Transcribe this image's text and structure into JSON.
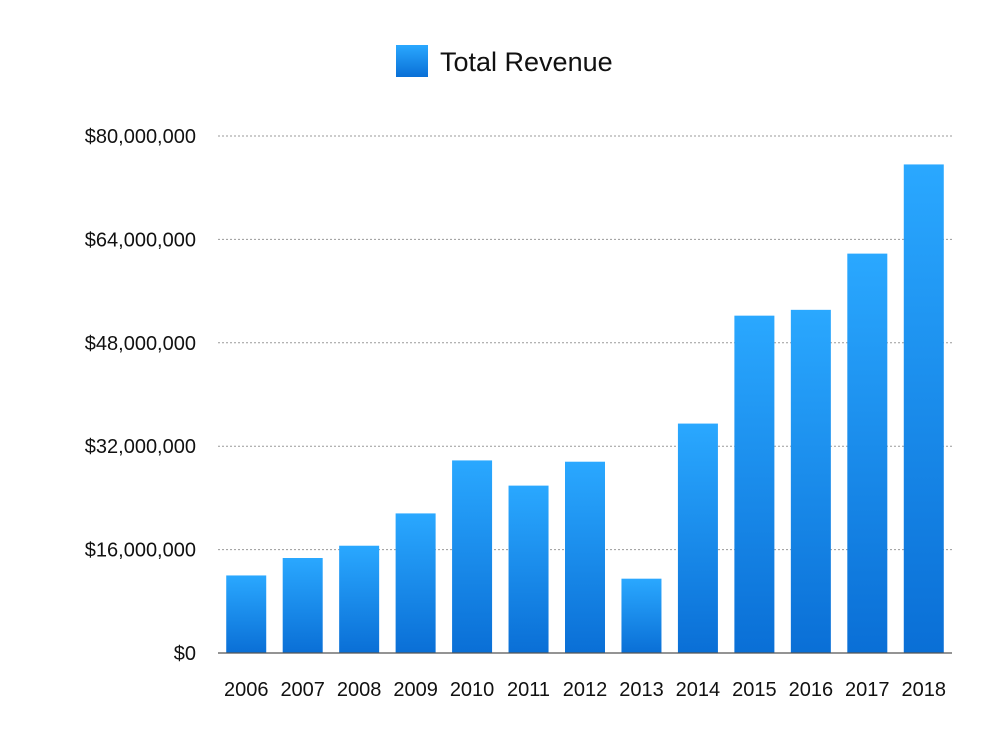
{
  "chart_data": {
    "type": "bar",
    "title": "",
    "xlabel": "",
    "ylabel": "",
    "categories": [
      "2006",
      "2007",
      "2008",
      "2009",
      "2010",
      "2011",
      "2012",
      "2013",
      "2014",
      "2015",
      "2016",
      "2017",
      "2018"
    ],
    "series": [
      {
        "name": "Total Revenue",
        "values": [
          12000000,
          14700000,
          16600000,
          21600000,
          29800000,
          25900000,
          29600000,
          11500000,
          35500000,
          52200000,
          53100000,
          61800000,
          75600000
        ]
      }
    ],
    "ylim": [
      0,
      80000000
    ],
    "yticks": [
      0,
      16000000,
      32000000,
      48000000,
      64000000,
      80000000
    ],
    "ytick_labels": [
      "$0",
      "$16,000,000",
      "$32,000,000",
      "$48,000,000",
      "$64,000,000",
      "$80,000,000"
    ],
    "grid": true,
    "legend_position": "top-center"
  },
  "colors": {
    "bar_top": "#2aa8ff",
    "bar_bottom": "#0a6fd6",
    "legend_top": "#2aa8ff",
    "legend_bottom": "#0a6fd6"
  }
}
